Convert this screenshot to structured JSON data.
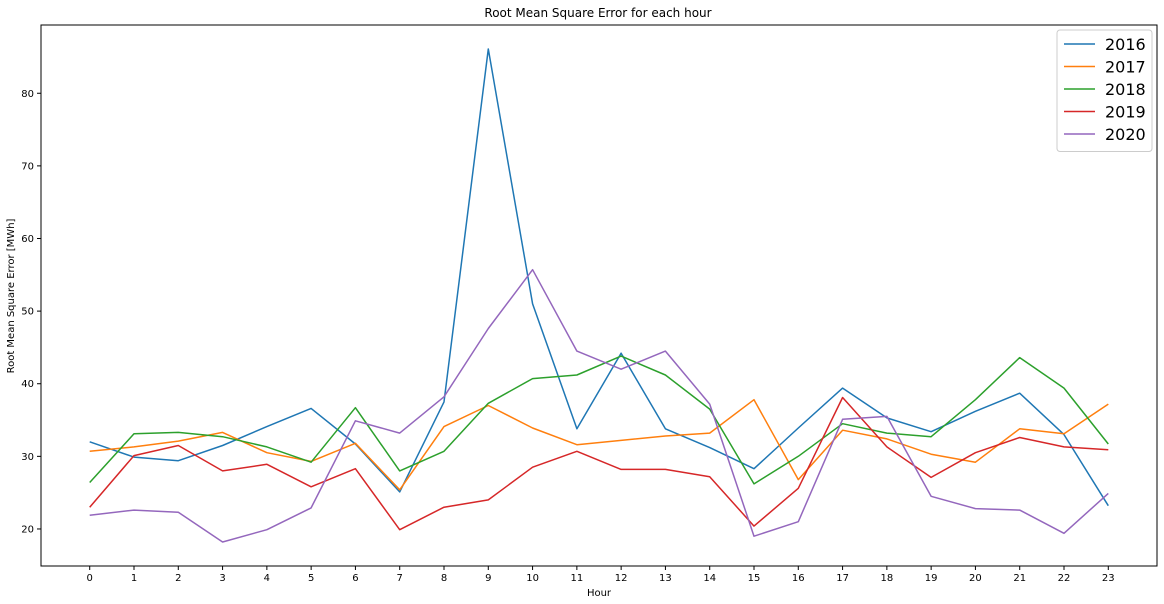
{
  "chart_data": {
    "type": "line",
    "title": "Root Mean Square Error for each hour",
    "xlabel": "Hour",
    "ylabel": "Root Mean Square Error [MWh]",
    "x": [
      0,
      1,
      2,
      3,
      4,
      5,
      6,
      7,
      8,
      9,
      10,
      11,
      12,
      13,
      14,
      15,
      16,
      17,
      18,
      19,
      20,
      21,
      22,
      23
    ],
    "xlim": [
      -1.1,
      24.1
    ],
    "ylim": [
      14.9,
      89.4
    ],
    "yticks": [
      20,
      30,
      40,
      50,
      60,
      70,
      80
    ],
    "grid": false,
    "legend": "top-right",
    "series": [
      {
        "name": "2016",
        "color": "#1f77b4",
        "values": [
          32.0,
          29.9,
          29.4,
          31.5,
          34.1,
          36.6,
          31.7,
          25.1,
          37.5,
          86.1,
          51.0,
          33.8,
          44.2,
          33.8,
          31.2,
          28.3,
          33.9,
          39.4,
          35.3,
          33.4,
          36.2,
          38.7,
          33.0,
          23.2
        ]
      },
      {
        "name": "2017",
        "color": "#ff7f0e",
        "values": [
          30.7,
          31.3,
          32.1,
          33.3,
          30.5,
          29.3,
          31.8,
          25.4,
          34.1,
          37.0,
          33.9,
          31.6,
          32.2,
          32.8,
          33.2,
          37.8,
          26.8,
          33.6,
          32.4,
          30.3,
          29.2,
          33.8,
          33.1,
          37.2
        ]
      },
      {
        "name": "2018",
        "color": "#2ca02c",
        "values": [
          26.4,
          33.1,
          33.3,
          32.7,
          31.3,
          29.2,
          36.7,
          28.0,
          30.7,
          37.3,
          40.7,
          41.2,
          43.8,
          41.2,
          36.5,
          26.2,
          30.0,
          34.5,
          33.2,
          32.7,
          37.8,
          43.6,
          39.4,
          31.7
        ]
      },
      {
        "name": "2019",
        "color": "#d62728",
        "values": [
          23.0,
          30.1,
          31.5,
          28.0,
          28.9,
          25.8,
          28.3,
          19.9,
          23.0,
          24.0,
          28.5,
          30.7,
          28.2,
          28.2,
          27.2,
          20.4,
          25.6,
          38.1,
          31.3,
          27.1,
          30.5,
          32.6,
          31.3,
          30.9
        ]
      },
      {
        "name": "2020",
        "color": "#9467bd",
        "values": [
          21.9,
          22.6,
          22.3,
          18.2,
          19.9,
          22.9,
          34.9,
          33.2,
          38.2,
          47.6,
          55.7,
          44.5,
          42.0,
          44.5,
          37.2,
          19.0,
          21.0,
          35.1,
          35.5,
          24.5,
          22.8,
          22.6,
          19.4,
          24.9
        ]
      }
    ]
  }
}
